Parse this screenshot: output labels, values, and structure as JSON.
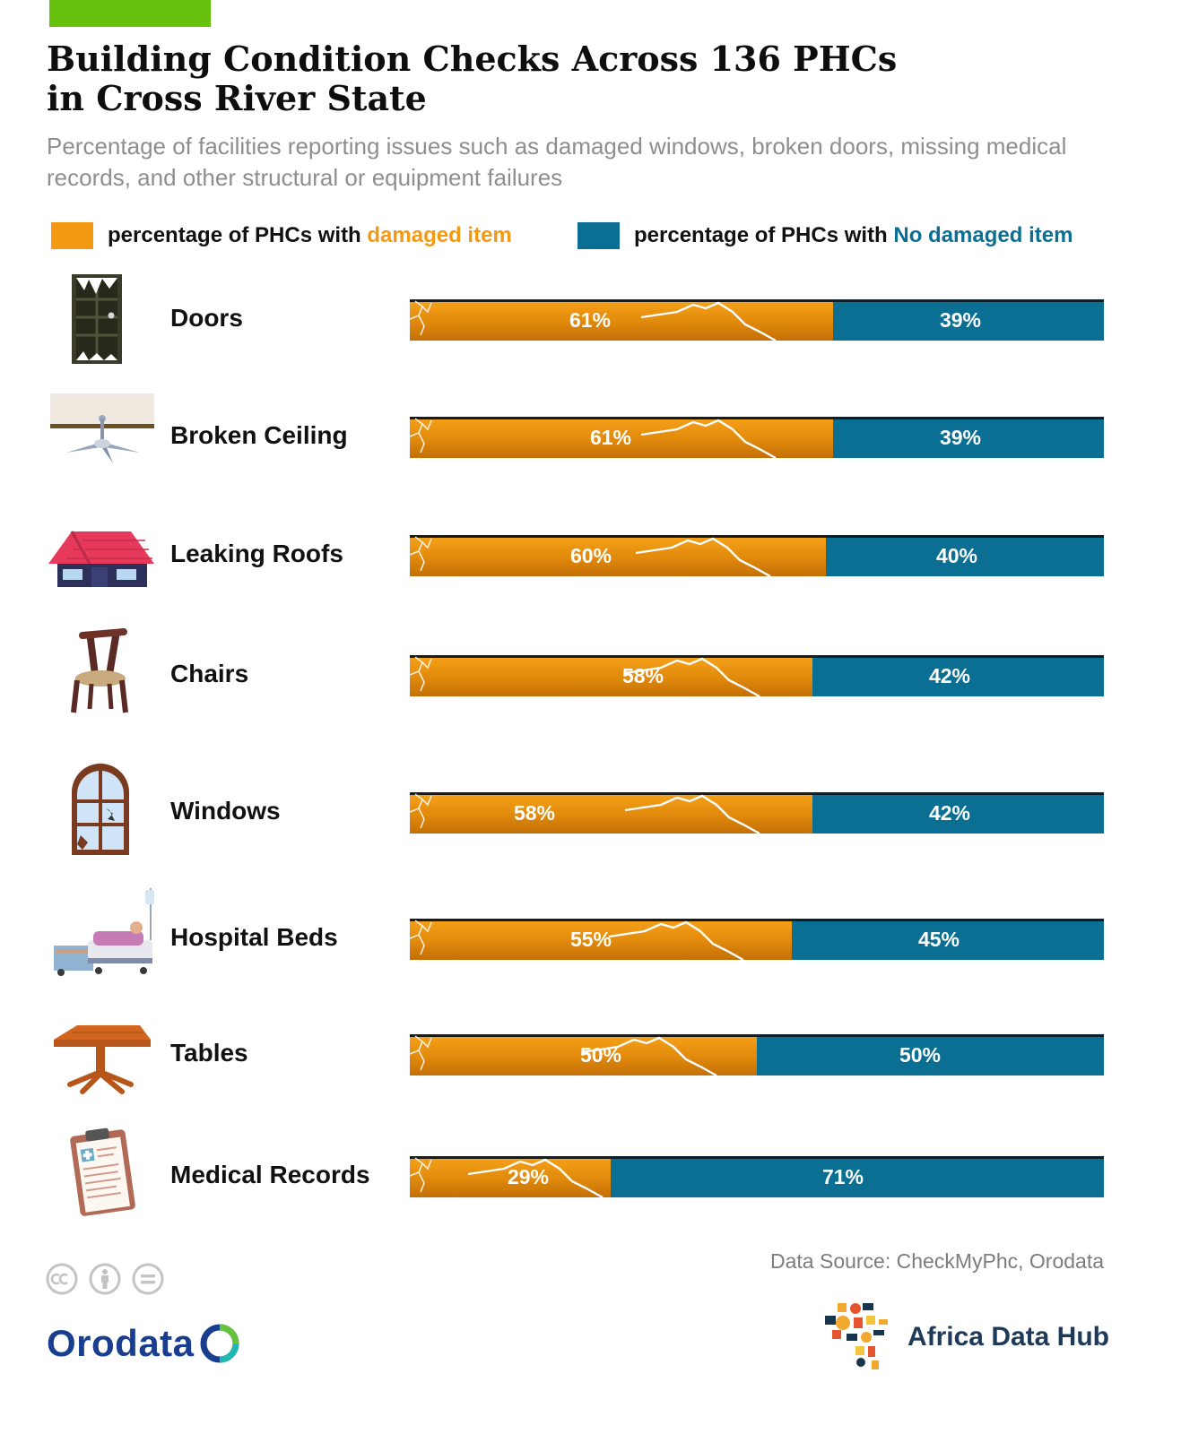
{
  "header": {
    "title_line1": "Building Condition Checks Across 136 PHCs",
    "title_line2": "in Cross River State",
    "subtitle": "Percentage of facilities reporting issues such as damaged windows, broken doors, missing medical records, and other structural or equipment failures"
  },
  "legend": {
    "damaged_prefix": "percentage of PHCs with ",
    "damaged_emphasis": "damaged item",
    "no_damage_prefix": "percentage of PHCs with ",
    "no_damage_emphasis": "No damaged item"
  },
  "colors": {
    "damaged": "#f39a12",
    "no_damage": "#0a6f93",
    "accent_bar": "#66c10d"
  },
  "chart_data": {
    "type": "bar",
    "orientation": "horizontal",
    "stacked": true,
    "normalized_100": true,
    "categories": [
      "Doors",
      "Broken Ceiling",
      "Leaking Roofs",
      "Chairs",
      "Windows",
      "Hospital Beds",
      "Tables",
      "Medical Records"
    ],
    "series": [
      {
        "name": "percentage of PHCs with damaged item",
        "values": [
          61,
          61,
          60,
          58,
          58,
          55,
          50,
          29
        ],
        "labels": [
          "61%",
          "61%",
          "60%",
          "58%",
          "58%",
          "55%",
          "50%",
          "29%"
        ],
        "color": "#f39a12"
      },
      {
        "name": "percentage of PHCs with No damaged item",
        "values": [
          39,
          39,
          40,
          42,
          42,
          45,
          50,
          71
        ],
        "labels": [
          "39%",
          "39%",
          "40%",
          "42%",
          "42%",
          "45%",
          "50%",
          "71%"
        ],
        "color": "#0a6f93"
      }
    ],
    "icons": [
      "door-icon",
      "ceiling-fan-icon",
      "roof-house-icon",
      "chair-icon",
      "window-icon",
      "hospital-bed-icon",
      "table-icon",
      "clipboard-icon"
    ],
    "legend_position": "top",
    "grid": false
  },
  "footer": {
    "source": "Data Source: CheckMyPhc, Orodata",
    "orodata_text": "Orodata",
    "adh_text": "Africa Data Hub"
  }
}
